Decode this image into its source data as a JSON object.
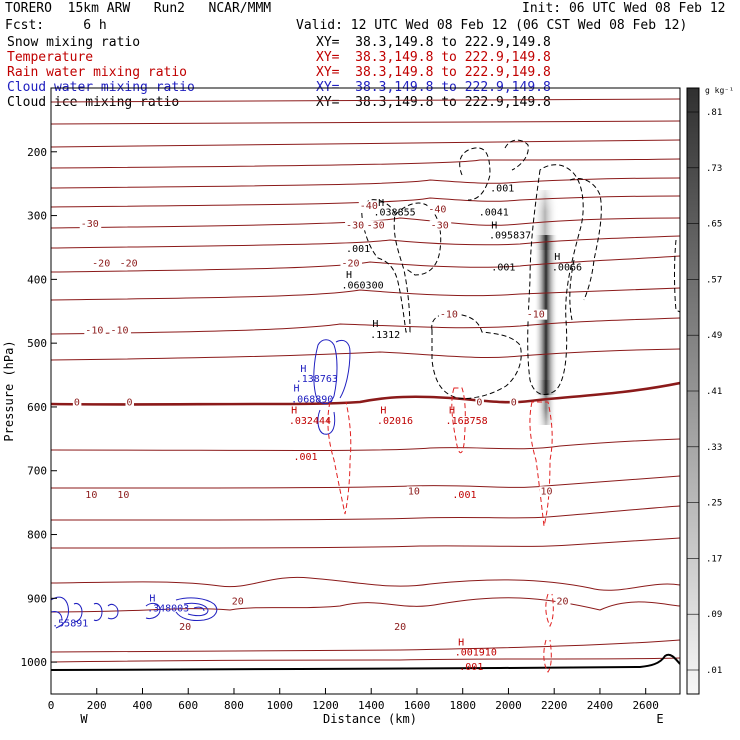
{
  "header": {
    "model": "TORERO  15km ARW   Run2   NCAR/MMM",
    "init": "Init: 06 UTC Wed 08 Feb 12",
    "fcst": "Fcst:     6 h",
    "valid": "Valid: 12 UTC Wed 08 Feb 12 (06 CST Wed 08 Feb 12)"
  },
  "legend": [
    {
      "label": "Snow mixing ratio",
      "xy": "XY=  38.3,149.8 to 222.9,149.8",
      "color": "#000000"
    },
    {
      "label": "Temperature",
      "xy": "XY=  38.3,149.8 to 222.9,149.8",
      "color": "#c00000"
    },
    {
      "label": "Rain water mixing ratio",
      "xy": "XY=  38.3,149.8 to 222.9,149.8",
      "color": "#c00000"
    },
    {
      "label": "Cloud water mixing ratio",
      "xy": "XY=  38.3,149.8 to 222.9,149.8",
      "color": "#2020c0"
    },
    {
      "label": "Cloud ice mixing ratio",
      "xy": "XY=  38.3,149.8 to 222.9,149.8",
      "color": "#000000"
    }
  ],
  "chart_data": {
    "type": "contour",
    "xlabel": "Distance (km)",
    "ylabel": "Pressure (hPa)",
    "xlim": [
      0,
      2750
    ],
    "ylim": [
      1050,
      100
    ],
    "x_ticks": [
      0,
      200,
      400,
      600,
      800,
      1000,
      1200,
      1400,
      1600,
      1800,
      2000,
      2200,
      2400,
      2600
    ],
    "y_ticks": [
      200,
      300,
      400,
      500,
      600,
      700,
      800,
      900,
      1000
    ],
    "x_left_label": "W",
    "x_right_label": "E",
    "colorbar": {
      "unit": "g kg⁻¹",
      "levels": [
        ".01",
        ".09",
        ".17",
        ".25",
        ".33",
        ".41",
        ".49",
        ".57",
        ".65",
        ".73",
        ".81"
      ]
    },
    "temperature_labels": [
      {
        "x": 130,
        "p": 318,
        "text": "-30"
      },
      {
        "x": 180,
        "p": 380,
        "text": "-20"
      },
      {
        "x": 300,
        "p": 380,
        "text": "-20"
      },
      {
        "x": 150,
        "p": 485,
        "text": "-10"
      },
      {
        "x": 260,
        "p": 485,
        "text": "-10"
      },
      {
        "x": 100,
        "p": 598,
        "text": "0"
      },
      {
        "x": 330,
        "p": 598,
        "text": "0"
      },
      {
        "x": 150,
        "p": 743,
        "text": "10"
      },
      {
        "x": 290,
        "p": 743,
        "text": "10"
      },
      {
        "x": 1350,
        "p": 290,
        "text": "-40"
      },
      {
        "x": 1290,
        "p": 320,
        "text": "-30"
      },
      {
        "x": 1380,
        "p": 320,
        "text": "-30"
      },
      {
        "x": 1270,
        "p": 380,
        "text": "-20"
      },
      {
        "x": 1650,
        "p": 295,
        "text": "-40"
      },
      {
        "x": 1660,
        "p": 320,
        "text": "-30"
      },
      {
        "x": 1700,
        "p": 460,
        "text": "-10"
      },
      {
        "x": 2080,
        "p": 460,
        "text": "-10"
      },
      {
        "x": 1860,
        "p": 598,
        "text": "0"
      },
      {
        "x": 2010,
        "p": 598,
        "text": "0"
      },
      {
        "x": 1560,
        "p": 737,
        "text": "10"
      },
      {
        "x": 2140,
        "p": 737,
        "text": "10"
      },
      {
        "x": 2210,
        "p": 910,
        "text": "20"
      },
      {
        "x": 1500,
        "p": 950,
        "text": "20"
      },
      {
        "x": 790,
        "p": 910,
        "text": "20"
      },
      {
        "x": 560,
        "p": 950,
        "text": "20"
      }
    ],
    "annotations": [
      {
        "x": 1430,
        "p": 285,
        "text": "H",
        "color": "#000000"
      },
      {
        "x": 1410,
        "p": 300,
        "text": ".038855",
        "color": "#000000"
      },
      {
        "x": 1290,
        "p": 357,
        "text": ".001",
        "color": "#000000"
      },
      {
        "x": 1290,
        "p": 398,
        "text": "H",
        "color": "#000000"
      },
      {
        "x": 1270,
        "p": 414,
        "text": ".060300",
        "color": "#000000"
      },
      {
        "x": 1405,
        "p": 475,
        "text": "H",
        "color": "#000000"
      },
      {
        "x": 1395,
        "p": 492,
        "text": ".1312",
        "color": "#000000"
      },
      {
        "x": 1870,
        "p": 300,
        "text": ".0041",
        "color": "#000000"
      },
      {
        "x": 1920,
        "p": 262,
        "text": ".001",
        "color": "#000000"
      },
      {
        "x": 1925,
        "p": 320,
        "text": "H",
        "color": "#000000"
      },
      {
        "x": 1915,
        "p": 336,
        "text": ".095837",
        "color": "#000000"
      },
      {
        "x": 1925,
        "p": 386,
        "text": ".001",
        "color": "#000000"
      },
      {
        "x": 2200,
        "p": 370,
        "text": "H",
        "color": "#000000"
      },
      {
        "x": 2190,
        "p": 386,
        "text": ".0066",
        "color": "#000000"
      },
      {
        "x": 1090,
        "p": 545,
        "text": "H",
        "color": "#2020c0"
      },
      {
        "x": 1070,
        "p": 561,
        "text": ".138763",
        "color": "#2020c0"
      },
      {
        "x": 1060,
        "p": 576,
        "text": "H",
        "color": "#2020c0"
      },
      {
        "x": 1050,
        "p": 593,
        "text": ".068890",
        "color": "#2020c0"
      },
      {
        "x": 1050,
        "p": 610,
        "text": "H",
        "color": "#c00000"
      },
      {
        "x": 1040,
        "p": 627,
        "text": ".032444",
        "color": "#c00000"
      },
      {
        "x": 1060,
        "p": 683,
        "text": ".001",
        "color": "#c00000"
      },
      {
        "x": 1440,
        "p": 610,
        "text": "H",
        "color": "#c00000"
      },
      {
        "x": 1425,
        "p": 627,
        "text": ".02016",
        "color": "#c00000"
      },
      {
        "x": 1740,
        "p": 610,
        "text": "H",
        "color": "#c00000"
      },
      {
        "x": 1725,
        "p": 627,
        "text": ".163758",
        "color": "#c00000"
      },
      {
        "x": 1755,
        "p": 743,
        "text": ".001",
        "color": "#c00000"
      },
      {
        "x": 430,
        "p": 905,
        "text": "H",
        "color": "#2020c0"
      },
      {
        "x": 420,
        "p": 921,
        "text": ".348003",
        "color": "#2020c0"
      },
      {
        "x": 5,
        "p": 944,
        "text": ".55891",
        "color": "#2020c0"
      },
      {
        "x": 1780,
        "p": 974,
        "text": "H",
        "color": "#c00000"
      },
      {
        "x": 1765,
        "p": 990,
        "text": ".001910",
        "color": "#c00000"
      },
      {
        "x": 1785,
        "p": 1012,
        "text": ".001",
        "color": "#c00000"
      }
    ]
  }
}
